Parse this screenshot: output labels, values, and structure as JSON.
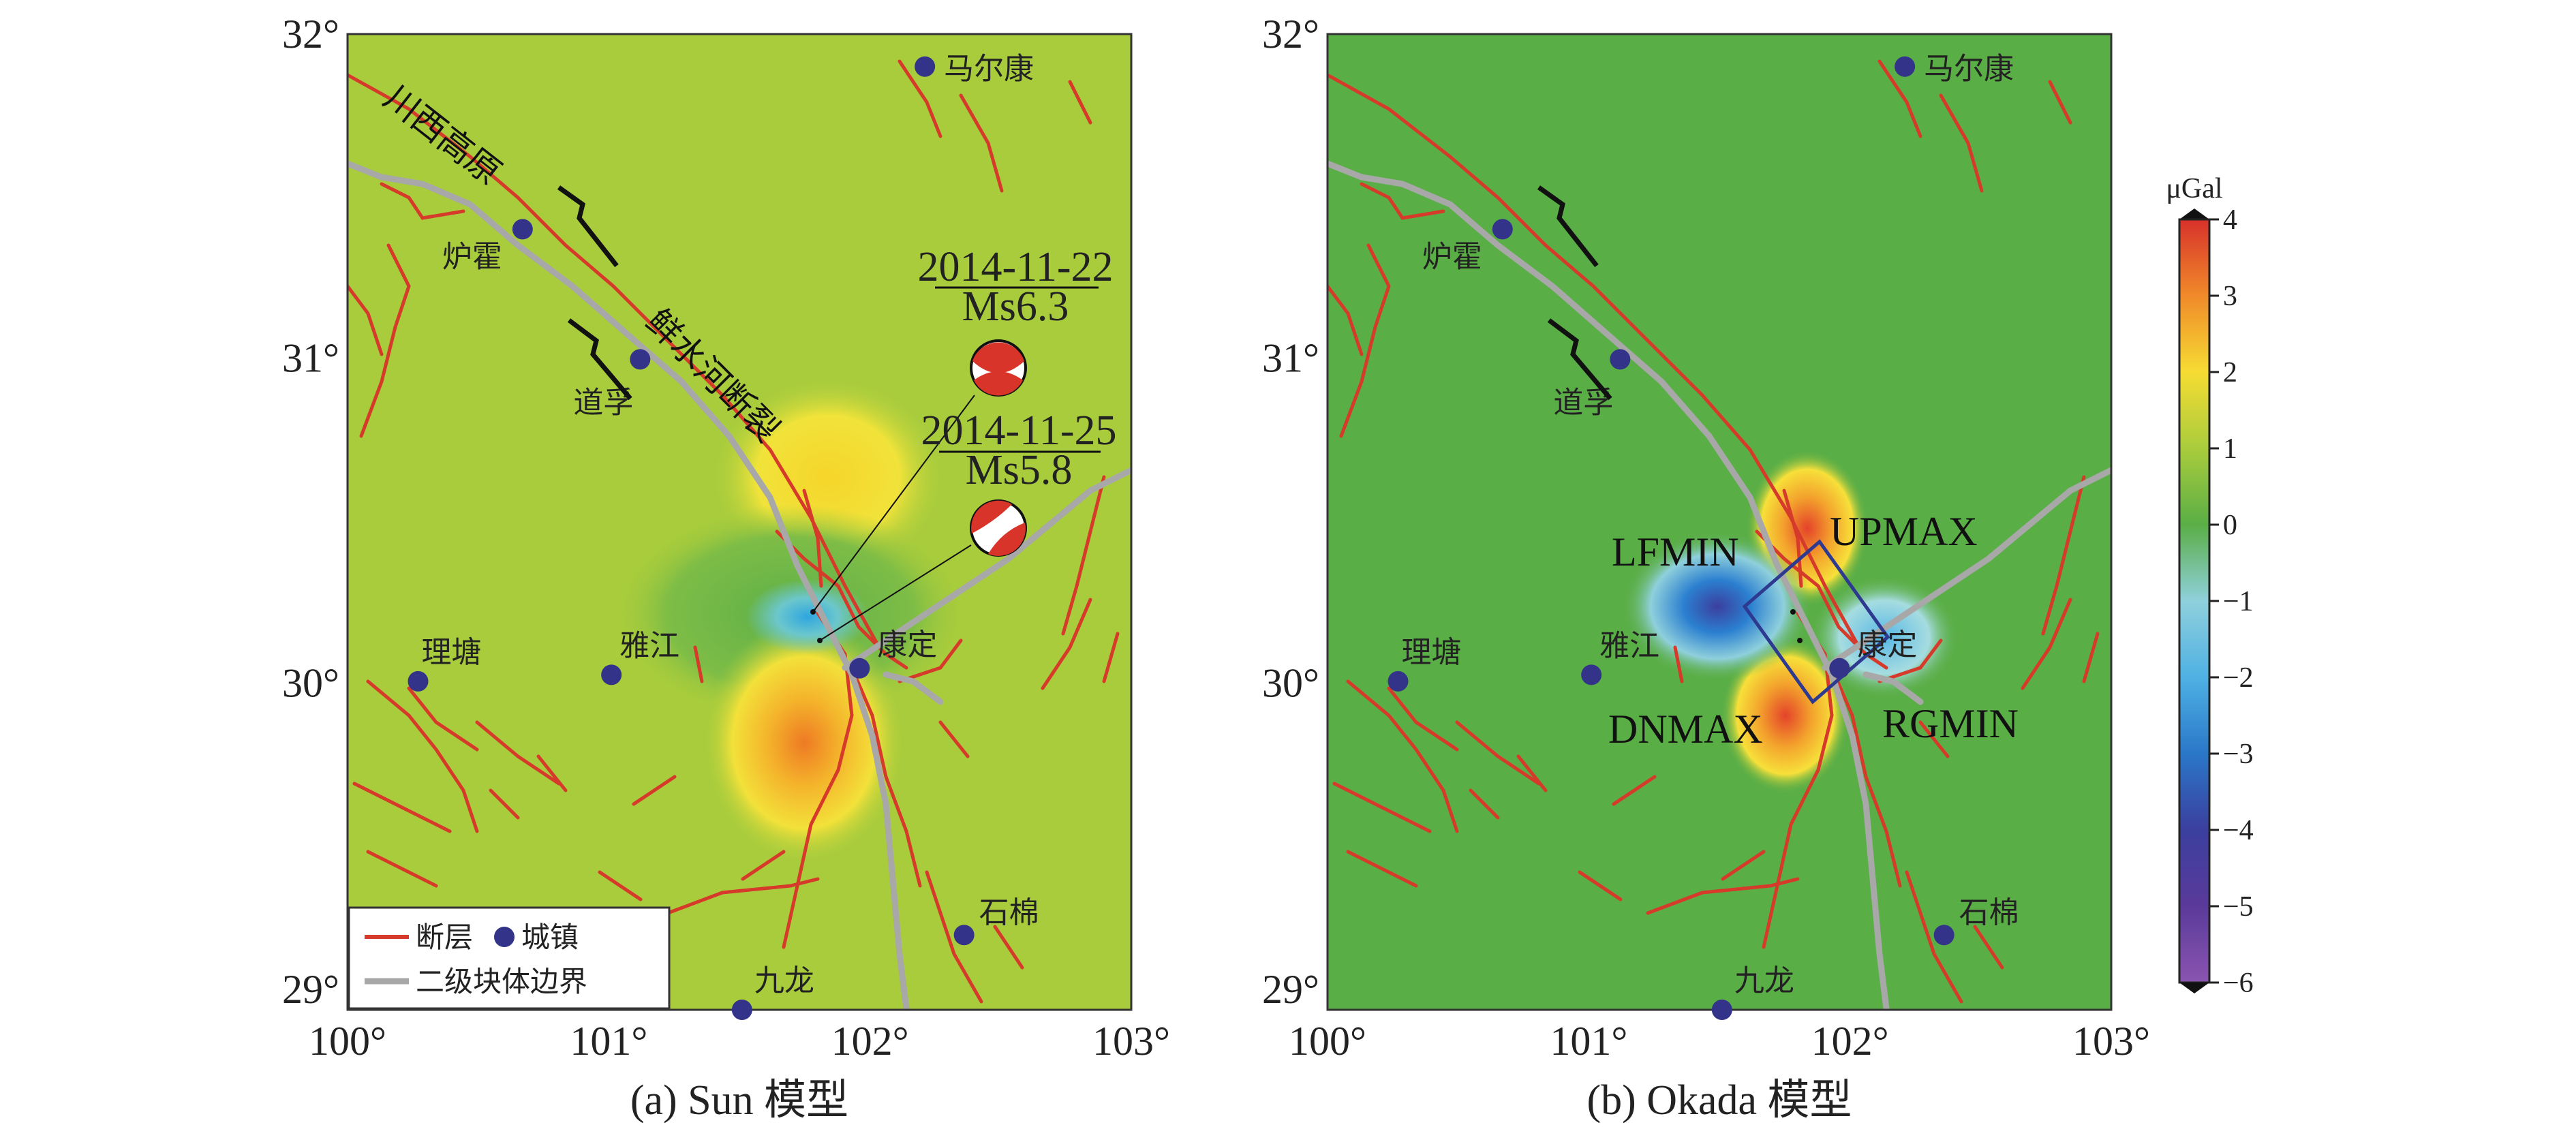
{
  "axes": {
    "lon_ticks": [
      "100°",
      "101°",
      "102°",
      "103°"
    ],
    "lat_ticks": [
      "32°",
      "31°",
      "30°",
      "29°"
    ]
  },
  "cities": [
    {
      "name": "马尔康",
      "lon": 102.21,
      "lat": 31.9
    },
    {
      "name": "炉霍",
      "lon": 100.67,
      "lat": 31.4
    },
    {
      "name": "道孚",
      "lon": 101.12,
      "lat": 31.0
    },
    {
      "name": "理塘",
      "lon": 100.27,
      "lat": 30.01
    },
    {
      "name": "雅江",
      "lon": 101.01,
      "lat": 30.03
    },
    {
      "name": "康定",
      "lon": 101.96,
      "lat": 30.05
    },
    {
      "name": "石棉",
      "lon": 102.36,
      "lat": 29.23
    },
    {
      "name": "九龙",
      "lon": 101.51,
      "lat": 29.0
    }
  ],
  "panel_a": {
    "caption": "(a)  Sun 模型",
    "region_label": "川西高原",
    "fault_label": "鲜水河断裂",
    "events": [
      {
        "date": "2014-11-22",
        "mag": "Ms6.3",
        "lon": 101.73,
        "lat": 30.27
      },
      {
        "date": "2014-11-25",
        "mag": "Ms5.8",
        "lon": 101.76,
        "lat": 30.17
      }
    ],
    "legend": {
      "fault": "断层",
      "town": "城镇",
      "boundary": "二级块体边界"
    }
  },
  "panel_b": {
    "caption": "(b)  Okada 模型",
    "zone_labels": [
      "LFMIN",
      "UPMAX",
      "DNMAX",
      "RGMIN"
    ]
  },
  "colorbar": {
    "unit": "μGal",
    "ticks": [
      "4",
      "3",
      "2",
      "1",
      "0",
      "−1",
      "−2",
      "−3",
      "−4",
      "−5",
      "−6"
    ],
    "range": [
      -6,
      4
    ]
  },
  "colors": {
    "fault": "#d63a2a",
    "boundary": "#a8a8a8",
    "town": "#33338a",
    "background_a": "#a8cc3c",
    "background_b": "#5aae46"
  }
}
